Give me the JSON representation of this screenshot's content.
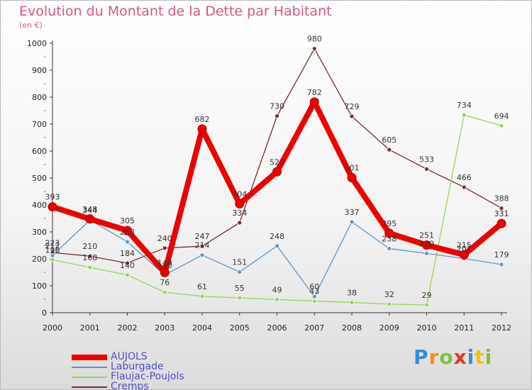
{
  "title": "Evolution du Montant de la Dette par Habitant",
  "unit_label": "(en €)",
  "logo": {
    "letters": [
      "P",
      "r",
      "o",
      "x",
      "i",
      "t",
      "i"
    ],
    "colors": [
      "#2f8fd8",
      "#f28c1e",
      "#7cc142",
      "#e6332a",
      "#2f8fd8",
      "#f2c300",
      "#7cc142"
    ]
  },
  "chart_data": {
    "type": "line",
    "title": "Evolution du Montant de la Dette par Habitant",
    "ylabel": "(en €)",
    "xlabel": "",
    "x": [
      "2000",
      "2001",
      "2002",
      "2003",
      "2004",
      "2005",
      "2006",
      "2007",
      "2008",
      "2009",
      "2010",
      "2011",
      "2012"
    ],
    "ylim": [
      0,
      1000
    ],
    "yticks": [
      0,
      100,
      200,
      300,
      400,
      500,
      600,
      700,
      800,
      900,
      1000
    ],
    "grid": false,
    "legend_position": "bottom-left",
    "series": [
      {
        "name": "AUJOLS",
        "color": "#ee0000",
        "values": [
          393,
          348,
          305,
          149,
          682,
          404,
          523,
          782,
          501,
          295,
          251,
          215,
          331
        ],
        "labels": [
          "393",
          "348",
          "305",
          "149",
          "682",
          "404",
          "523",
          "782",
          "501",
          "295",
          "251",
          "215",
          "331"
        ]
      },
      {
        "name": "Laburgade",
        "color": "#5b96c8",
        "values": [
          212,
          344,
          263,
          140,
          214,
          151,
          248,
          60,
          337,
          238,
          220,
          201,
          179
        ],
        "labels": [
          "212",
          "344",
          "263",
          "140",
          "214",
          "151",
          "248",
          "60",
          "337",
          "238",
          "220",
          "201",
          "179"
        ]
      },
      {
        "name": "Flaujac-Poujols",
        "color": "#90d65a",
        "values": [
          196,
          168,
          140,
          76,
          61,
          55,
          49,
          43,
          38,
          32,
          29,
          734,
          694
        ],
        "labels": [
          "196",
          "168",
          "140",
          "76",
          "61",
          "55",
          "49",
          "43",
          "38",
          "32",
          "29",
          "734",
          "694"
        ]
      },
      {
        "name": "Cremps",
        "color": "#7a2a2a",
        "values": [
          223,
          210,
          184,
          240,
          247,
          334,
          730,
          980,
          729,
          605,
          533,
          466,
          388
        ],
        "labels": [
          "223",
          "210",
          "184",
          "240",
          "247",
          "334",
          "730",
          "980",
          "729",
          "605",
          "533",
          "466",
          "388"
        ]
      }
    ]
  }
}
